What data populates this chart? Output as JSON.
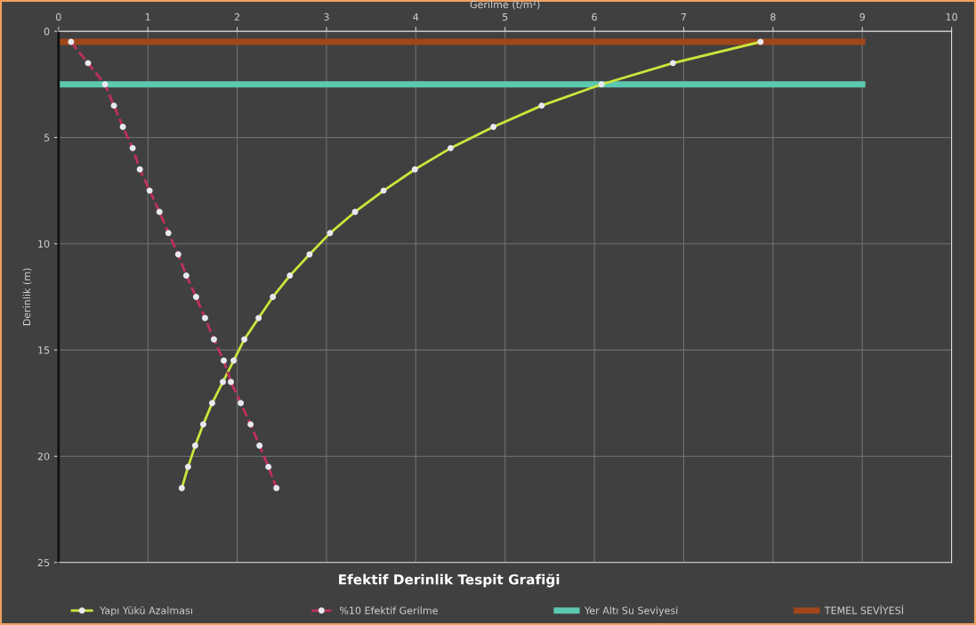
{
  "chart_data": {
    "type": "line",
    "title": "Efektif Derinlik Tespit Grafiği",
    "xlabel": "Gerilme (t/m²)",
    "ylabel": "Derinlik (m)",
    "xlim": [
      0,
      10
    ],
    "xticks": [
      0,
      1,
      2,
      3,
      4,
      5,
      6,
      7,
      8,
      9,
      10
    ],
    "ylim": [
      25,
      0
    ],
    "yticks": [
      0,
      5,
      10,
      15,
      20,
      25
    ],
    "grid": true,
    "legend": "bottom",
    "series": [
      {
        "name": "Yapı Yükü Azalması",
        "color": "#c8e63c",
        "marker": "circle",
        "line_style": "solid",
        "x": [
          7.86,
          6.88,
          6.08,
          5.41,
          4.87,
          4.39,
          3.99,
          3.64,
          3.32,
          3.04,
          2.81,
          2.59,
          2.4,
          2.24,
          2.08,
          1.96,
          1.84,
          1.72,
          1.62,
          1.53,
          1.45,
          1.38
        ],
        "values": [
          0.5,
          1.5,
          2.5,
          3.5,
          4.5,
          5.5,
          6.5,
          7.5,
          8.5,
          9.5,
          10.5,
          11.5,
          12.5,
          13.5,
          14.5,
          15.5,
          16.5,
          17.5,
          18.5,
          19.5,
          20.5,
          21.5
        ]
      },
      {
        "name": "%10 Efektif Gerilme",
        "color": "#c0305a",
        "marker": "circle",
        "line_style": "dashed",
        "x": [
          0.14,
          0.33,
          0.52,
          0.62,
          0.72,
          0.83,
          0.91,
          1.02,
          1.13,
          1.23,
          1.34,
          1.43,
          1.54,
          1.64,
          1.74,
          1.85,
          1.93,
          2.04,
          2.15,
          2.25,
          2.35,
          2.44
        ],
        "values": [
          0.5,
          1.5,
          2.5,
          3.5,
          4.5,
          5.5,
          6.5,
          7.5,
          8.5,
          9.5,
          10.5,
          11.5,
          12.5,
          13.5,
          14.5,
          15.5,
          16.5,
          17.5,
          18.5,
          19.5,
          20.5,
          21.5
        ]
      },
      {
        "name": "Yer Altı Su Seviyesi",
        "color": "#5cc8b0",
        "marker": "none",
        "line_style": "solid",
        "x": [
          0,
          9
        ],
        "values": [
          2.5,
          2.5
        ]
      },
      {
        "name": "TEMEL SEVİYESİ",
        "color": "#a0461a",
        "marker": "none",
        "line_style": "solid",
        "x": [
          0,
          9
        ],
        "values": [
          0.5,
          0.5
        ]
      }
    ]
  }
}
